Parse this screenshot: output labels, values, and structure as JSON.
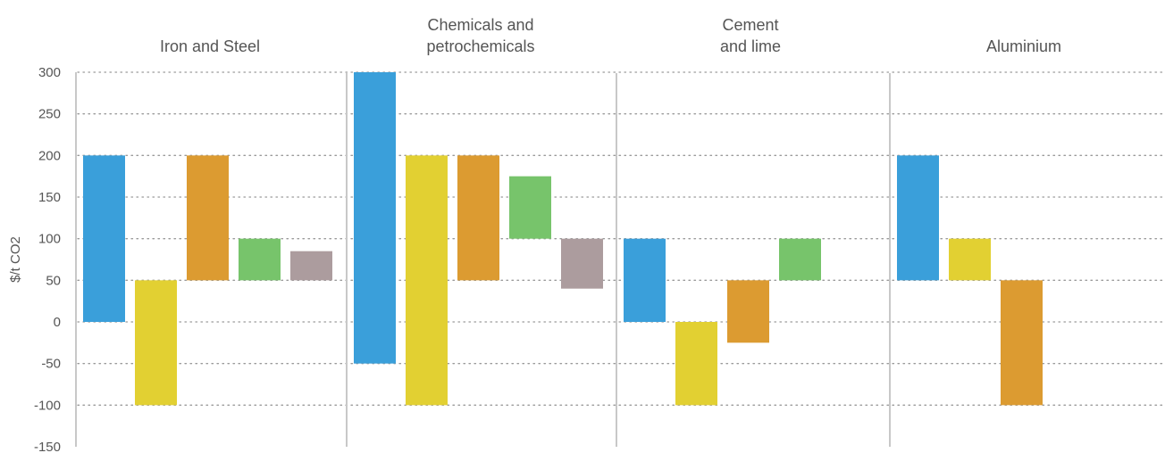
{
  "chart_data": {
    "type": "bar",
    "subtype": "floating-range",
    "ylabel": "$/t CO2",
    "ylim": [
      -150,
      300
    ],
    "yticks": [
      -150,
      -100,
      -50,
      0,
      50,
      100,
      150,
      200,
      250,
      300
    ],
    "yticks_labels": [
      "-150",
      "-100",
      "-50",
      "0",
      "50",
      "100",
      "150",
      "200",
      "250",
      "300"
    ],
    "grid": "dotted-horizontal",
    "colors": [
      "#3A9FDA",
      "#E2D032",
      "#DC9B31",
      "#77C46B",
      "#AC9C9E"
    ],
    "panels": [
      {
        "title_lines": [
          "Iron and Steel"
        ],
        "bars": [
          {
            "low": 0,
            "high": 200
          },
          {
            "low": -100,
            "high": 50
          },
          {
            "low": 50,
            "high": 200
          },
          {
            "low": 50,
            "high": 100
          },
          {
            "low": 50,
            "high": 85
          }
        ]
      },
      {
        "title_lines": [
          "Chemicals and",
          "petrochemicals"
        ],
        "bars": [
          {
            "low": -50,
            "high": 300
          },
          {
            "low": -100,
            "high": 200
          },
          {
            "low": 50,
            "high": 200
          },
          {
            "low": 100,
            "high": 175
          },
          {
            "low": 40,
            "high": 100
          }
        ]
      },
      {
        "title_lines": [
          "Cement",
          "and lime"
        ],
        "bars": [
          {
            "low": 0,
            "high": 100
          },
          {
            "low": -100,
            "high": 0
          },
          {
            "low": -25,
            "high": 50
          },
          {
            "low": 50,
            "high": 100
          }
        ]
      },
      {
        "title_lines": [
          "Aluminium"
        ],
        "bars": [
          {
            "low": 50,
            "high": 200
          },
          {
            "low": 50,
            "high": 100
          },
          {
            "low": -100,
            "high": 50
          }
        ]
      }
    ]
  }
}
